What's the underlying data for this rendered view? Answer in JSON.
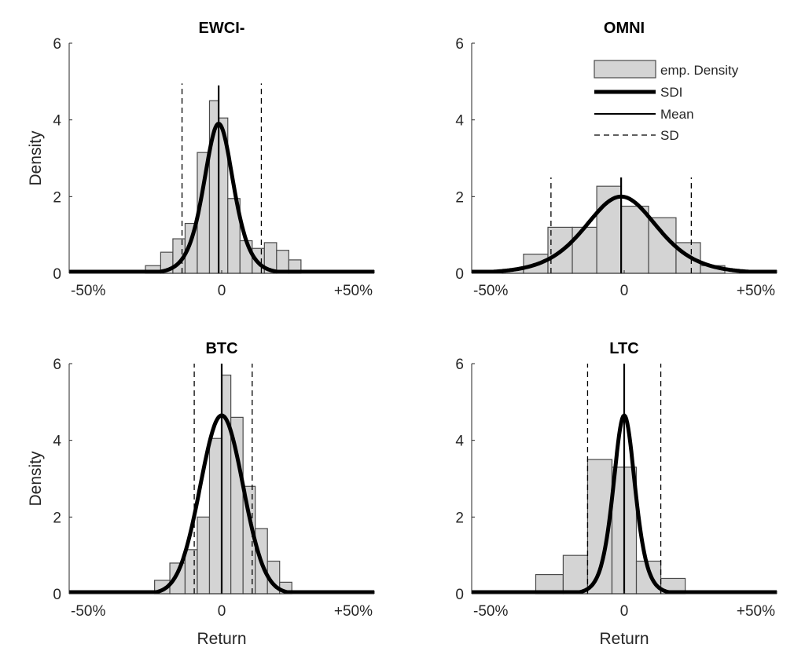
{
  "colors": {
    "bar_fill": "#d4d4d4",
    "bar_edge": "#4a4a4a",
    "curve": "#000000",
    "axis": "#262626"
  },
  "legend": {
    "entries": [
      "emp. Density",
      "SDI",
      "Mean",
      "SD"
    ],
    "placement": "top-right of OMNI panel"
  },
  "chart_data": [
    {
      "type": "bar",
      "title": "EWCI-",
      "xlabel": "",
      "ylabel": "Density",
      "xlim": [
        -0.5,
        0.5
      ],
      "ylim": [
        0,
        6
      ],
      "x_tick_values": [
        -0.5,
        0,
        0.5
      ],
      "x_tick_labels": [
        "-50%",
        "0",
        "+50%"
      ],
      "y_tick_values": [
        0,
        2,
        4,
        6
      ],
      "y_tick_labels": [
        "0",
        "2",
        "4",
        "6"
      ],
      "grid": false,
      "histogram": {
        "bin_edges": [
          -0.25,
          -0.2,
          -0.16,
          -0.12,
          -0.08,
          -0.04,
          -0.01,
          0.02,
          0.06,
          0.1,
          0.14,
          0.18,
          0.22,
          0.26,
          0.3
        ],
        "densities": [
          0.2,
          0.55,
          0.9,
          1.3,
          3.15,
          4.5,
          4.05,
          1.95,
          0.85,
          0.65,
          0.8,
          0.6,
          0.35,
          0.0
        ]
      },
      "density_curve": {
        "mean": -0.01,
        "scale": 0.065,
        "peak": 3.9
      },
      "mean": -0.01,
      "sd_lines": [
        -0.13,
        0.13
      ],
      "mean_line_top": 4.9,
      "sd_line_top": 4.95
    },
    {
      "type": "bar",
      "title": "OMNI",
      "xlabel": "",
      "ylabel": "",
      "xlim": [
        -0.5,
        0.5
      ],
      "ylim": [
        0,
        6
      ],
      "x_tick_values": [
        -0.5,
        0,
        0.5
      ],
      "x_tick_labels": [
        "-50%",
        "0",
        "+50%"
      ],
      "y_tick_values": [
        0,
        2,
        4,
        6
      ],
      "y_tick_labels": [
        "0",
        "2",
        "4",
        "6"
      ],
      "grid": false,
      "histogram": {
        "bin_edges": [
          -0.4,
          -0.33,
          -0.25,
          -0.17,
          -0.09,
          -0.01,
          0.08,
          0.17,
          0.25,
          0.33,
          0.41
        ],
        "densities": [
          0.1,
          0.5,
          1.2,
          1.2,
          2.27,
          1.75,
          1.45,
          0.8,
          0.2,
          0.0
        ]
      },
      "density_curve": {
        "mean": -0.01,
        "scale": 0.16,
        "peak": 2.0
      },
      "mean": -0.01,
      "sd_lines": [
        -0.24,
        0.22
      ],
      "mean_line_top": 2.5,
      "sd_line_top": 2.5
    },
    {
      "type": "bar",
      "title": "BTC",
      "xlabel": "Return",
      "ylabel": "Density",
      "xlim": [
        -0.5,
        0.5
      ],
      "ylim": [
        0,
        6
      ],
      "x_tick_values": [
        -0.5,
        0,
        0.5
      ],
      "x_tick_labels": [
        "-50%",
        "0",
        "+50%"
      ],
      "y_tick_values": [
        0,
        2,
        4,
        6
      ],
      "y_tick_labels": [
        "0",
        "2",
        "4",
        "6"
      ],
      "grid": false,
      "histogram": {
        "bin_edges": [
          -0.22,
          -0.17,
          -0.12,
          -0.08,
          -0.04,
          0.0,
          0.03,
          0.07,
          0.11,
          0.15,
          0.19,
          0.23
        ],
        "densities": [
          0.35,
          0.8,
          1.15,
          2.0,
          4.05,
          5.7,
          4.6,
          2.8,
          1.7,
          0.85,
          0.3
        ]
      },
      "density_curve": {
        "mean": 0.0,
        "scale": 0.07,
        "peak": 4.65,
        "shape": "gaussian"
      },
      "mean": 0.0,
      "sd_lines": [
        -0.09,
        0.1
      ],
      "mean_line_top": 6.0,
      "sd_line_top": 6.0
    },
    {
      "type": "bar",
      "title": "LTC",
      "xlabel": "Return",
      "ylabel": "",
      "xlim": [
        -0.5,
        0.5
      ],
      "ylim": [
        0,
        6
      ],
      "x_tick_values": [
        -0.5,
        0,
        0.5
      ],
      "x_tick_labels": [
        "-50%",
        "0",
        "+50%"
      ],
      "y_tick_values": [
        0,
        2,
        4,
        6
      ],
      "y_tick_labels": [
        "0",
        "2",
        "4",
        "6"
      ],
      "grid": false,
      "histogram": {
        "bin_edges": [
          -0.29,
          -0.2,
          -0.12,
          -0.04,
          0.04,
          0.12,
          0.2,
          0.29
        ],
        "densities": [
          0.5,
          1.0,
          3.5,
          3.3,
          0.85,
          0.4,
          0.0
        ]
      },
      "density_curve": {
        "mean": 0.0,
        "scale": 0.048,
        "peak": 4.65
      },
      "mean": 0.0,
      "sd_lines": [
        -0.12,
        0.12
      ],
      "mean_line_top": 6.0,
      "sd_line_top": 6.0
    }
  ]
}
